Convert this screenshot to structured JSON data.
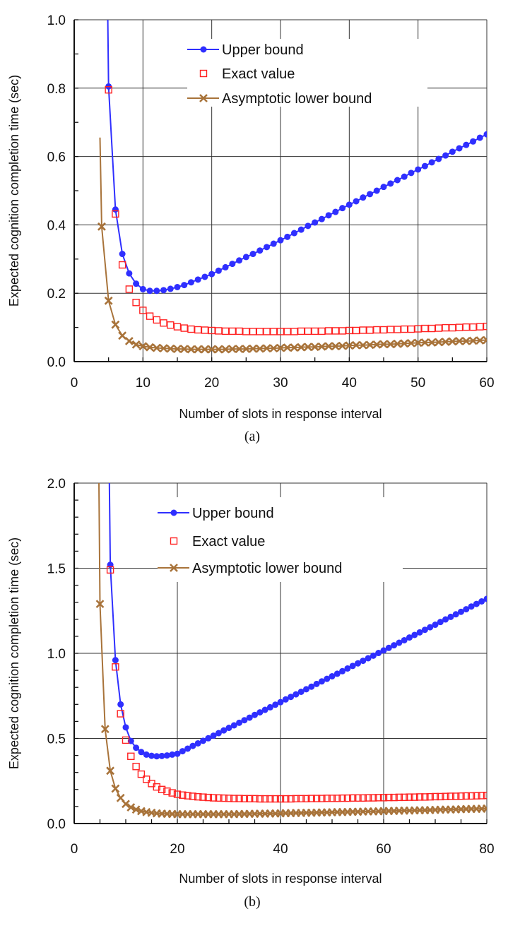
{
  "colors": {
    "upper": "#2f2fff",
    "exact": "#ff2020",
    "lower": "#a8733a",
    "grid": "#333333"
  },
  "chart_data": [
    {
      "type": "line",
      "caption": "(a)",
      "xlabel": "Number of slots in response interval",
      "ylabel": "Expected cognition completion time (sec)",
      "xlim": [
        0,
        60
      ],
      "ylim": [
        0,
        1.0
      ],
      "xticks": [
        0,
        10,
        20,
        30,
        40,
        50,
        60
      ],
      "yticks": [
        "0.0",
        "0.2",
        "0.4",
        "0.6",
        "0.8",
        "1.0"
      ],
      "grid": true,
      "legend": "top-center",
      "series": [
        {
          "name": "Upper bound",
          "marker": "filled-circle",
          "line": true,
          "x": [
            5,
            6,
            7,
            8,
            9,
            10,
            11,
            12,
            13,
            14,
            15,
            16,
            17,
            18,
            19,
            20,
            21,
            22,
            23,
            24,
            25,
            26,
            27,
            28,
            29,
            30,
            31,
            32,
            33,
            34,
            35,
            36,
            37,
            38,
            39,
            40,
            41,
            42,
            43,
            44,
            45,
            46,
            47,
            48,
            49,
            50,
            51,
            52,
            53,
            54,
            55,
            56,
            57,
            58,
            59,
            60
          ],
          "y": [
            0.805,
            0.445,
            0.315,
            0.258,
            0.228,
            0.212,
            0.207,
            0.207,
            0.209,
            0.213,
            0.218,
            0.224,
            0.232,
            0.24,
            0.248,
            0.256,
            0.266,
            0.276,
            0.286,
            0.296,
            0.306,
            0.315,
            0.325,
            0.335,
            0.345,
            0.355,
            0.365,
            0.376,
            0.386,
            0.397,
            0.407,
            0.417,
            0.428,
            0.438,
            0.449,
            0.459,
            0.469,
            0.48,
            0.49,
            0.5,
            0.511,
            0.521,
            0.531,
            0.541,
            0.552,
            0.562,
            0.572,
            0.583,
            0.593,
            0.603,
            0.614,
            0.624,
            0.634,
            0.644,
            0.655,
            0.665
          ]
        },
        {
          "name": "Exact value",
          "marker": "open-square",
          "line": false,
          "x": [
            5,
            6,
            7,
            8,
            9,
            10,
            11,
            12,
            13,
            14,
            15,
            16,
            17,
            18,
            19,
            20,
            21,
            22,
            23,
            24,
            25,
            26,
            27,
            28,
            29,
            30,
            31,
            32,
            33,
            34,
            35,
            36,
            37,
            38,
            39,
            40,
            41,
            42,
            43,
            44,
            45,
            46,
            47,
            48,
            49,
            50,
            51,
            52,
            53,
            54,
            55,
            56,
            57,
            58,
            59,
            60
          ],
          "y": [
            0.795,
            0.432,
            0.283,
            0.212,
            0.173,
            0.15,
            0.133,
            0.122,
            0.113,
            0.107,
            0.102,
            0.098,
            0.095,
            0.093,
            0.092,
            0.091,
            0.09,
            0.089,
            0.089,
            0.089,
            0.088,
            0.088,
            0.088,
            0.088,
            0.088,
            0.088,
            0.088,
            0.088,
            0.089,
            0.089,
            0.089,
            0.089,
            0.09,
            0.09,
            0.09,
            0.091,
            0.091,
            0.092,
            0.092,
            0.093,
            0.093,
            0.094,
            0.094,
            0.095,
            0.095,
            0.096,
            0.097,
            0.097,
            0.098,
            0.099,
            0.099,
            0.1,
            0.101,
            0.101,
            0.102,
            0.103
          ]
        },
        {
          "name": "Asymptotic lower bound",
          "marker": "x-cross",
          "line": true,
          "x": [
            4,
            5,
            6,
            7,
            8,
            9,
            10,
            11,
            12,
            13,
            14,
            15,
            16,
            17,
            18,
            19,
            20,
            21,
            22,
            23,
            24,
            25,
            26,
            27,
            28,
            29,
            30,
            31,
            32,
            33,
            34,
            35,
            36,
            37,
            38,
            39,
            40,
            41,
            42,
            43,
            44,
            45,
            46,
            47,
            48,
            49,
            50,
            51,
            52,
            53,
            54,
            55,
            56,
            57,
            58,
            59,
            60
          ],
          "y": [
            0.395,
            0.178,
            0.108,
            0.076,
            0.06,
            0.05,
            0.045,
            0.042,
            0.04,
            0.039,
            0.038,
            0.037,
            0.037,
            0.036,
            0.036,
            0.036,
            0.036,
            0.036,
            0.036,
            0.037,
            0.037,
            0.037,
            0.038,
            0.038,
            0.039,
            0.039,
            0.04,
            0.041,
            0.041,
            0.042,
            0.043,
            0.043,
            0.044,
            0.045,
            0.045,
            0.046,
            0.047,
            0.048,
            0.048,
            0.049,
            0.05,
            0.051,
            0.051,
            0.052,
            0.053,
            0.054,
            0.055,
            0.056,
            0.056,
            0.057,
            0.058,
            0.059,
            0.06,
            0.06,
            0.061,
            0.062,
            0.063
          ]
        }
      ]
    },
    {
      "type": "line",
      "caption": "(b)",
      "xlabel": "Number of slots in response interval",
      "ylabel": "Expected cognition completion time (sec)",
      "xlim": [
        0,
        80
      ],
      "ylim": [
        0,
        2.0
      ],
      "xticks": [
        0,
        20,
        40,
        60,
        80
      ],
      "yticks": [
        "0.0",
        "0.5",
        "1.0",
        "1.5",
        "2.0"
      ],
      "grid": true,
      "legend": "top-center",
      "series": [
        {
          "name": "Upper bound",
          "marker": "filled-circle",
          "line": true,
          "x": [
            7,
            8,
            9,
            10,
            11,
            12,
            13,
            14,
            15,
            16,
            17,
            18,
            19,
            20,
            21,
            22,
            23,
            24,
            25,
            26,
            27,
            28,
            29,
            30,
            31,
            32,
            33,
            34,
            35,
            36,
            37,
            38,
            39,
            40,
            41,
            42,
            43,
            44,
            45,
            46,
            47,
            48,
            49,
            50,
            51,
            52,
            53,
            54,
            55,
            56,
            57,
            58,
            59,
            60,
            61,
            62,
            63,
            64,
            65,
            66,
            67,
            68,
            69,
            70,
            71,
            72,
            73,
            74,
            75,
            76,
            77,
            78,
            79,
            80
          ],
          "y": [
            1.52,
            0.96,
            0.7,
            0.565,
            0.485,
            0.445,
            0.42,
            0.405,
            0.398,
            0.395,
            0.397,
            0.4,
            0.405,
            0.41,
            0.425,
            0.44,
            0.456,
            0.471,
            0.486,
            0.501,
            0.516,
            0.531,
            0.547,
            0.562,
            0.577,
            0.592,
            0.607,
            0.622,
            0.638,
            0.653,
            0.668,
            0.683,
            0.698,
            0.713,
            0.729,
            0.744,
            0.759,
            0.774,
            0.789,
            0.804,
            0.82,
            0.835,
            0.85,
            0.865,
            0.88,
            0.895,
            0.911,
            0.926,
            0.941,
            0.956,
            0.971,
            0.986,
            1.002,
            1.017,
            1.032,
            1.047,
            1.062,
            1.077,
            1.093,
            1.108,
            1.123,
            1.138,
            1.153,
            1.168,
            1.184,
            1.199,
            1.214,
            1.229,
            1.244,
            1.259,
            1.275,
            1.29,
            1.305,
            1.32
          ]
        },
        {
          "name": "Exact value",
          "marker": "open-square",
          "line": false,
          "x": [
            7,
            8,
            9,
            10,
            11,
            12,
            13,
            14,
            15,
            16,
            17,
            18,
            19,
            20,
            21,
            22,
            23,
            24,
            25,
            26,
            27,
            28,
            29,
            30,
            31,
            32,
            33,
            34,
            35,
            36,
            37,
            38,
            39,
            40,
            41,
            42,
            43,
            44,
            45,
            46,
            47,
            48,
            49,
            50,
            51,
            52,
            53,
            54,
            55,
            56,
            57,
            58,
            59,
            60,
            61,
            62,
            63,
            64,
            65,
            66,
            67,
            68,
            69,
            70,
            71,
            72,
            73,
            74,
            75,
            76,
            77,
            78,
            79,
            80
          ],
          "y": [
            1.49,
            0.92,
            0.645,
            0.49,
            0.395,
            0.335,
            0.29,
            0.26,
            0.235,
            0.215,
            0.2,
            0.19,
            0.18,
            0.172,
            0.167,
            0.163,
            0.16,
            0.157,
            0.155,
            0.153,
            0.151,
            0.15,
            0.149,
            0.148,
            0.147,
            0.147,
            0.146,
            0.146,
            0.146,
            0.145,
            0.145,
            0.145,
            0.145,
            0.145,
            0.145,
            0.145,
            0.146,
            0.146,
            0.146,
            0.147,
            0.147,
            0.147,
            0.148,
            0.148,
            0.148,
            0.149,
            0.149,
            0.15,
            0.15,
            0.15,
            0.151,
            0.151,
            0.152,
            0.152,
            0.153,
            0.153,
            0.154,
            0.154,
            0.155,
            0.155,
            0.156,
            0.156,
            0.157,
            0.158,
            0.158,
            0.159,
            0.16,
            0.16,
            0.161,
            0.162,
            0.162,
            0.163,
            0.164,
            0.165
          ]
        },
        {
          "name": "Asymptotic lower bound",
          "marker": "x-cross",
          "line": true,
          "x": [
            5,
            6,
            7,
            8,
            9,
            10,
            11,
            12,
            13,
            14,
            15,
            16,
            17,
            18,
            19,
            20,
            21,
            22,
            23,
            24,
            25,
            26,
            27,
            28,
            29,
            30,
            31,
            32,
            33,
            34,
            35,
            36,
            37,
            38,
            39,
            40,
            41,
            42,
            43,
            44,
            45,
            46,
            47,
            48,
            49,
            50,
            51,
            52,
            53,
            54,
            55,
            56,
            57,
            58,
            59,
            60,
            61,
            62,
            63,
            64,
            65,
            66,
            67,
            68,
            69,
            70,
            71,
            72,
            73,
            74,
            75,
            76,
            77,
            78,
            79,
            80
          ],
          "y": [
            1.29,
            0.555,
            0.31,
            0.205,
            0.15,
            0.115,
            0.095,
            0.082,
            0.073,
            0.067,
            0.063,
            0.06,
            0.058,
            0.057,
            0.056,
            0.055,
            0.055,
            0.055,
            0.055,
            0.055,
            0.055,
            0.055,
            0.055,
            0.055,
            0.055,
            0.055,
            0.055,
            0.056,
            0.056,
            0.057,
            0.057,
            0.058,
            0.058,
            0.059,
            0.059,
            0.06,
            0.061,
            0.061,
            0.062,
            0.062,
            0.063,
            0.063,
            0.064,
            0.065,
            0.065,
            0.066,
            0.067,
            0.067,
            0.068,
            0.069,
            0.069,
            0.07,
            0.071,
            0.071,
            0.072,
            0.073,
            0.074,
            0.074,
            0.075,
            0.076,
            0.076,
            0.077,
            0.078,
            0.078,
            0.079,
            0.08,
            0.081,
            0.082,
            0.082,
            0.083,
            0.084,
            0.085,
            0.086,
            0.086,
            0.087,
            0.088
          ]
        }
      ]
    }
  ]
}
